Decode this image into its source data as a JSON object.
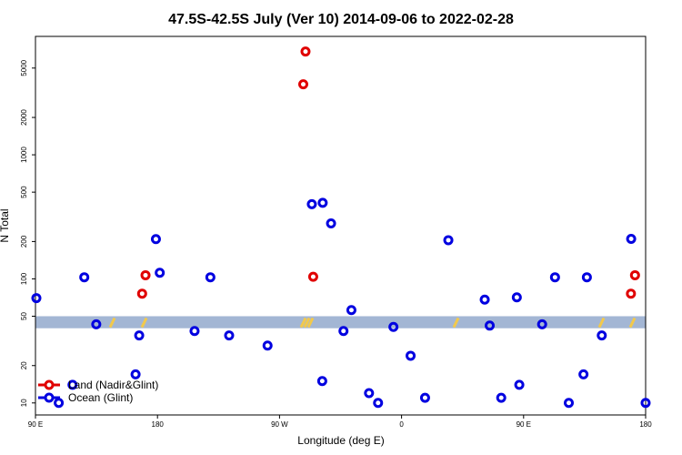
{
  "chart_data": {
    "type": "scatter",
    "title": "47.5S-42.5S July (Ver 10)   2014-09-06 to 2022-02-28",
    "xlabel": "Longitude (deg E)",
    "ylabel": "N Total",
    "y_scale": "log",
    "xlim": [
      90,
      360
    ],
    "ylim": [
      8,
      9000
    ],
    "x_ticks": [
      {
        "value": 90,
        "label": "90 E"
      },
      {
        "value": 144,
        "label": "180"
      },
      {
        "value": 198,
        "label": "90 W"
      },
      {
        "value": 252,
        "label": "0"
      },
      {
        "value": 306,
        "label": "90 E"
      },
      {
        "value": 360,
        "label": "180"
      }
    ],
    "y_ticks": [
      10,
      20,
      50,
      100,
      200,
      500,
      1000,
      2000,
      5000
    ],
    "band": {
      "y_low": 40,
      "y_high": 50,
      "color": "#a3b6d4"
    },
    "band_marks_color": "#f2c94c",
    "legend_position": "bottom-left",
    "series": [
      {
        "name": "Land (Nadir&Glint)",
        "color": "#e00000",
        "x": [
          137.2,
          138.7,
          208.5,
          209.5,
          212.9,
          353.5,
          355.3
        ],
        "y": [
          76,
          107,
          3700,
          6800,
          104,
          76,
          107
        ]
      },
      {
        "name": "Ocean (Glint)",
        "color": "#0000e0",
        "x": [
          90.4,
          100.3,
          106.4,
          111.6,
          116.9,
          134.3,
          135.9,
          143.3,
          145.0,
          160.4,
          167.4,
          175.7,
          192.7,
          217.1,
          212.3,
          216.9,
          220.8,
          226.3,
          229.8,
          237.6,
          241.6,
          248.4,
          256.0,
          262.4,
          272.7,
          288.8,
          291.0,
          296.1,
          303.0,
          304.1,
          314.2,
          319.9,
          326.0,
          332.5,
          340.6,
          353.6,
          362.2,
          334.0
        ],
        "y": [
          70,
          10,
          14,
          103,
          43,
          17,
          35,
          209,
          112,
          38,
          103,
          35,
          29,
          410,
          400,
          15,
          280,
          38,
          56,
          12,
          10,
          41,
          24,
          11,
          205,
          68,
          42,
          11,
          71,
          14,
          43,
          103,
          10,
          17,
          35,
          210,
          10,
          103
        ]
      }
    ]
  }
}
